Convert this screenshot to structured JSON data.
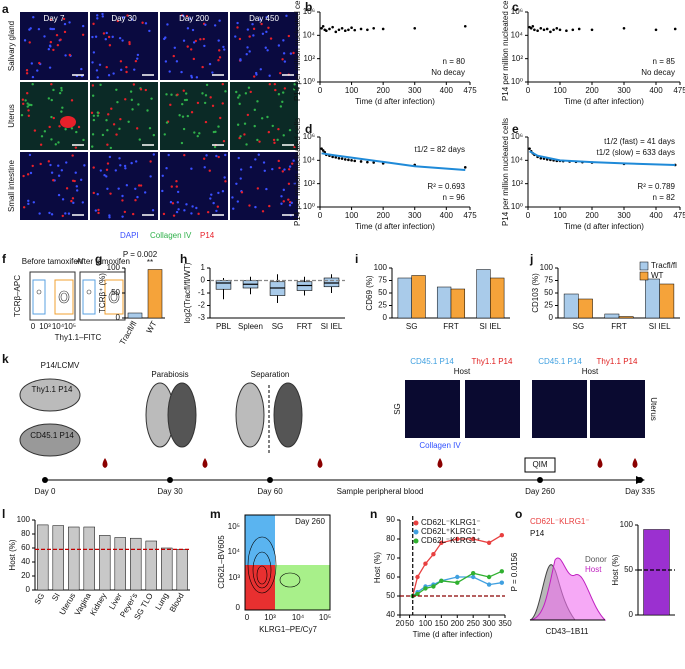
{
  "panel_letters": [
    "a",
    "b",
    "c",
    "d",
    "e",
    "f",
    "g",
    "h",
    "i",
    "j",
    "k",
    "l",
    "m",
    "n",
    "o"
  ],
  "image_a": {
    "columns": [
      "Day 7",
      "Day 30",
      "Day 200",
      "Day 450"
    ],
    "rows": [
      "Salivary gland",
      "Uterus",
      "Small intestine"
    ],
    "stains": [
      "DAPI",
      "Collagen IV",
      "P14"
    ],
    "stain_colors": [
      "#3a4fff",
      "#2fb04a",
      "#e8202a"
    ]
  },
  "flow_f": {
    "titles": [
      "Before tamoxifen",
      "After tamoxifen"
    ],
    "ylabel": "TCRβ–APC",
    "xlabel": "Thy1.1–FITC",
    "xticks": [
      "0",
      "10³",
      "10⁴",
      "10⁵"
    ]
  },
  "diagram_k": {
    "model": "P14/LCMV",
    "mouse1": "Thy1.1 P14",
    "mouse2": "CD45.1 P14",
    "step1": "Parabiosis",
    "step2": "Separation",
    "timeline": [
      "Day 0",
      "Day 30",
      "Day 60",
      "Day 260",
      "Day 335"
    ],
    "blood": "Sample peripheral blood",
    "qim": "QIM",
    "img_titles": [
      "CD45.1 P14",
      "Thy1.1 P14",
      "CD45.1 P14",
      "Thy1.1 P14"
    ],
    "host": [
      "Host",
      "Host"
    ],
    "tissues": [
      "SG",
      "Uterus"
    ],
    "stain": "Collagen IV"
  },
  "flow_m": {
    "ylabel": "CD62L–BV605",
    "xlabel": "KLRG1–PE/Cy7",
    "gate": "Day 260",
    "yticks": [
      "0",
      "10³",
      "10⁴",
      "10⁵"
    ],
    "xticks": [
      "0",
      "10³",
      "10⁴",
      "10⁵"
    ]
  },
  "hist_o": {
    "gate": "CD62L⁻KLRG1⁻",
    "cells": "P14",
    "legend": [
      "Donor",
      "Host"
    ],
    "xlabel": "CD43–1B11"
  },
  "chart_data": [
    {
      "type": "scatter",
      "log_y": true,
      "ylabel": "P14 per million nucleated cells",
      "xlabel": "Time (d after infection)",
      "xlim": [
        0,
        475
      ],
      "xticks": [
        0,
        100,
        200,
        300,
        400,
        475
      ],
      "ylim": [
        1,
        1000000
      ],
      "yticks": [
        {
          "value": 1,
          "label": "10⁰"
        },
        {
          "value": 100,
          "label": "10²"
        },
        {
          "value": 10000,
          "label": "10⁴"
        },
        {
          "value": 1000000,
          "label": "10⁶"
        }
      ],
      "x": [
        5,
        10,
        15,
        20,
        30,
        40,
        50,
        60,
        70,
        80,
        90,
        100,
        110,
        130,
        150,
        170,
        200,
        300,
        460
      ],
      "values": [
        40000,
        60000,
        30000,
        25000,
        35000,
        50000,
        20000,
        30000,
        40000,
        25000,
        30000,
        45000,
        28000,
        35000,
        30000,
        40000,
        35000,
        40000,
        60000
      ],
      "annotations": [
        "n = 80",
        "No decay"
      ]
    },
    {
      "type": "scatter",
      "log_y": true,
      "ylabel": "P14 per million nucleated cells",
      "xlabel": "Time (d after infection)",
      "xlim": [
        0,
        475
      ],
      "xticks": [
        0,
        100,
        200,
        300,
        400,
        475
      ],
      "ylim": [
        1,
        1000000
      ],
      "yticks": [
        {
          "value": 1,
          "label": "10⁰"
        },
        {
          "value": 100,
          "label": "10²"
        },
        {
          "value": 10000,
          "label": "10⁴"
        },
        {
          "value": 1000000,
          "label": "10⁶"
        }
      ],
      "x": [
        5,
        10,
        15,
        20,
        30,
        40,
        50,
        60,
        70,
        80,
        90,
        100,
        120,
        140,
        160,
        200,
        300,
        400,
        460
      ],
      "values": [
        50000,
        40000,
        60000,
        30000,
        25000,
        40000,
        30000,
        35000,
        20000,
        30000,
        40000,
        30000,
        25000,
        30000,
        35000,
        30000,
        40000,
        30000,
        35000
      ],
      "annotations": [
        "n = 85",
        "No decay"
      ]
    },
    {
      "type": "scatter",
      "log_y": true,
      "ylabel": "P14 per million nucleated cells",
      "xlabel": "Time (d after infection)",
      "xlim": [
        0,
        475
      ],
      "xticks": [
        0,
        100,
        200,
        300,
        400,
        475
      ],
      "ylim": [
        1,
        1000000
      ],
      "yticks": [
        {
          "value": 1,
          "label": "10⁰"
        },
        {
          "value": 100,
          "label": "10²"
        },
        {
          "value": 10000,
          "label": "10⁴"
        },
        {
          "value": 1000000,
          "label": "10⁶"
        }
      ],
      "x": [
        5,
        10,
        15,
        20,
        30,
        40,
        50,
        60,
        70,
        80,
        90,
        100,
        110,
        130,
        150,
        170,
        200,
        300,
        460
      ],
      "values": [
        100000,
        70000,
        50000,
        30000,
        25000,
        20000,
        18000,
        15000,
        14000,
        12000,
        11000,
        10000,
        9000,
        8000,
        7000,
        6500,
        5500,
        4000,
        2500
      ],
      "fit_x": [
        5,
        50,
        100,
        200,
        300,
        460
      ],
      "fit_values": [
        40000,
        26000,
        17000,
        7300,
        3100,
        1500
      ],
      "fit_color": "#1f8ad8",
      "annotations": [
        "t1/2 = 82 days",
        "R² = 0.693",
        "n = 96"
      ]
    },
    {
      "type": "scatter",
      "log_y": true,
      "ylabel": "P14 per million nucleated cells",
      "xlabel": "Time (d after infection)",
      "xlim": [
        0,
        475
      ],
      "xticks": [
        0,
        100,
        200,
        300,
        400,
        475
      ],
      "ylim": [
        1,
        1000000
      ],
      "yticks": [
        {
          "value": 1,
          "label": "10⁰"
        },
        {
          "value": 100,
          "label": "10²"
        },
        {
          "value": 10000,
          "label": "10⁴"
        },
        {
          "value": 1000000,
          "label": "10⁶"
        }
      ],
      "x": [
        5,
        10,
        15,
        20,
        30,
        40,
        50,
        60,
        70,
        80,
        90,
        100,
        110,
        130,
        150,
        170,
        200,
        300,
        460
      ],
      "values": [
        100000,
        60000,
        40000,
        30000,
        20000,
        15000,
        14000,
        12000,
        11000,
        10000,
        9000,
        9000,
        8500,
        8000,
        7500,
        7000,
        6500,
        5000,
        4000
      ],
      "fit_x": [
        5,
        30,
        100,
        200,
        300,
        460
      ],
      "fit_values": [
        60000,
        25000,
        10000,
        7000,
        5500,
        4000
      ],
      "fit_color": "#1f8ad8",
      "annotations": [
        "t1/2 (fast) = 41 days",
        "t1/2 (slow) = 633 days",
        "R² = 0.789",
        "n = 82"
      ]
    },
    {
      "type": "bar",
      "ylabel": "TCRβ⁺ (%)",
      "categories": [
        "Tracfl/fl",
        "WT"
      ],
      "values": [
        10,
        97
      ],
      "colors": [
        "#a9cbea",
        "#f5a33a"
      ],
      "ylim": [
        0,
        100
      ],
      "yticks": [
        0,
        50,
        100
      ],
      "rotate_labels": true,
      "annotations": [
        "P = 0.002",
        "**"
      ]
    },
    {
      "type": "box",
      "ylabel": "log2(Tracfl/fl/WT)",
      "categories": [
        "PBL",
        "Spleen",
        "SG",
        "FRT",
        "SI IEL"
      ],
      "color": "#a9cbea",
      "ylim": [
        -3,
        1
      ],
      "yticks": [
        -3,
        -2,
        -1,
        0,
        1
      ],
      "ref_line": 0,
      "ref_color": "#888888",
      "boxes": [
        {
          "min": -1.5,
          "q1": -0.7,
          "median": -0.2,
          "q3": 0,
          "max": 0.2
        },
        {
          "min": -1.1,
          "q1": -0.6,
          "median": -0.3,
          "q3": 0,
          "max": 0.3
        },
        {
          "min": -1.8,
          "q1": -1.2,
          "median": -0.6,
          "q3": -0.1,
          "max": 0.5
        },
        {
          "min": -1.2,
          "q1": -0.8,
          "median": -0.4,
          "q3": -0.1,
          "max": 0.3
        },
        {
          "min": -1,
          "q1": -0.5,
          "median": -0.2,
          "q3": 0.2,
          "max": 0.5
        }
      ]
    },
    {
      "type": "bar",
      "ylabel": "CD69 (%)",
      "categories": [
        "SG",
        "FRT",
        "SI IEL"
      ],
      "series": [
        {
          "name": "Tracfl/fl",
          "color": "#a9cbea",
          "values": [
            80,
            62,
            97
          ]
        },
        {
          "name": "WT",
          "color": "#f5a33a",
          "values": [
            85,
            58,
            80
          ]
        }
      ],
      "ylim": [
        0,
        100
      ],
      "yticks": [
        0,
        25,
        50,
        75,
        100
      ]
    },
    {
      "type": "bar",
      "ylabel": "CD103 (%)",
      "categories": [
        "SG",
        "FRT",
        "SI IEL"
      ],
      "series": [
        {
          "name": "Tracfl/fl",
          "color": "#a9cbea",
          "values": [
            48,
            8,
            78
          ]
        },
        {
          "name": "WT",
          "color": "#f5a33a",
          "values": [
            38,
            3,
            68
          ]
        }
      ],
      "ylim": [
        0,
        100
      ],
      "yticks": [
        0,
        25,
        50,
        75,
        100
      ],
      "legend": "top-right"
    },
    {
      "type": "bar",
      "ylabel": "Host (%)",
      "categories": [
        "SG",
        "SI",
        "Uterus",
        "Vagina",
        "Kidney",
        "Liver",
        "Peyer's",
        "SG TLO",
        "Lung",
        "Blood"
      ],
      "values": [
        93,
        92,
        90,
        90,
        78,
        75,
        74,
        70,
        60,
        58
      ],
      "color": "#c8c8c8",
      "ylim": [
        0,
        100
      ],
      "yticks": [
        0,
        20,
        40,
        60,
        80,
        100
      ],
      "rotate_labels": true,
      "ref_line": 58,
      "ref_color": "#c00000"
    },
    {
      "type": "line",
      "ylabel": "Host (%)",
      "xlabel": "Time (d after infection)",
      "xlim": [
        20,
        350
      ],
      "xticks": [
        20,
        50,
        100,
        150,
        200,
        250,
        300,
        350
      ],
      "ylim": [
        40,
        90
      ],
      "yticks": [
        40,
        50,
        60,
        70,
        80,
        90
      ],
      "ref_line": 50,
      "ref_color": "#8b0000",
      "ref_x": 60,
      "legend": "top-left",
      "annotations": [
        "P = 0.0156"
      ],
      "x": [
        60,
        75,
        100,
        125,
        150,
        200,
        250,
        300,
        340
      ],
      "series": [
        {
          "name": "CD62L⁻KLRG1⁻",
          "color": "#e84040",
          "values": [
            50,
            60,
            67,
            72,
            78,
            80,
            80,
            78,
            82
          ]
        },
        {
          "name": "CD62L⁺KLRG1⁻",
          "color": "#40a0e0",
          "values": [
            50,
            52,
            55,
            56,
            58,
            60,
            60,
            56,
            57
          ]
        },
        {
          "name": "CD62L⁻KLRG1⁺",
          "color": "#30b030",
          "values": [
            50,
            51,
            54,
            55,
            58,
            57,
            62,
            60,
            63
          ]
        }
      ]
    },
    {
      "type": "bar",
      "ylabel": "Host (%)",
      "categories": [
        null
      ],
      "values": [
        95
      ],
      "color": "#9b30d0",
      "ylim": [
        0,
        100
      ],
      "yticks": [
        0,
        50,
        100
      ],
      "ref_line": 50,
      "ref_color": "#000000"
    }
  ]
}
